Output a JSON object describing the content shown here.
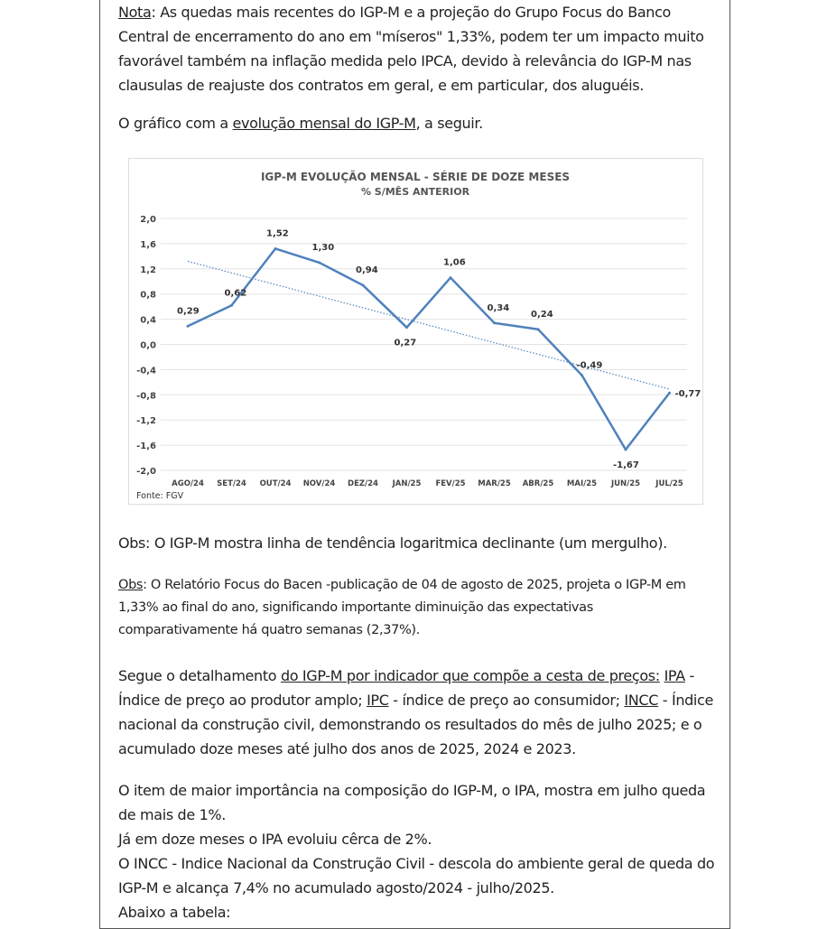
{
  "paragraphs": [
    {
      "id": "nota",
      "lines": [
        [
          {
            "t": "Nota",
            "u": true
          },
          {
            "t": ": As quedas mais recentes do IGP-M e a projeção do Grupo Focus do Banco"
          }
        ],
        [
          {
            "t": "Central de encerramento do ano em \"míseros\" 1,33%, podem ter um impacto muito"
          }
        ],
        [
          {
            "t": "favorável também na inflação medida pelo IPCA, devido à relevância do IGP-M nas"
          }
        ],
        [
          {
            "t": "clausulas de reajuste dos contratos em geral, e em particular, dos aluguéis."
          }
        ]
      ]
    },
    {
      "id": "grafico-intro",
      "lines": [
        [
          {
            "t": "O gráfico com a "
          },
          {
            "t": "evolução mensal do IGP-M",
            "u": true
          },
          {
            "t": ", a seguir."
          }
        ]
      ]
    },
    {
      "id": "obs1",
      "lines": [
        [
          {
            "t": "Obs: O IGP-M mostra linha de tendência logaritmica declinante (um mergulho)."
          }
        ]
      ]
    },
    {
      "id": "obs2",
      "small": true,
      "lines": [
        [
          {
            "t": "Obs",
            "u": true
          },
          {
            "t": ": O Relatório Focus do Bacen -publicação de 04 de agosto de 2025, projeta o IGP-M em"
          }
        ],
        [
          {
            "t": "1,33% ao final do ano, significando importante diminuição das expectativas"
          }
        ],
        [
          {
            "t": "comparativamente há quatro semanas (2,37%)."
          }
        ]
      ]
    },
    {
      "id": "segue",
      "lines": [
        [
          {
            "t": "Segue o detalhamento "
          },
          {
            "t": "do IGP-M por indicador que compõe a cesta de preços:",
            "u": true
          },
          {
            "t": " "
          },
          {
            "t": "IPA",
            "u": true
          },
          {
            "t": " -"
          }
        ],
        [
          {
            "t": "Índice de preço ao produtor amplo; "
          },
          {
            "t": "IPC",
            "u": true
          },
          {
            "t": " - índice de preço ao consumidor; "
          },
          {
            "t": "INCC",
            "u": true
          },
          {
            "t": " - Índice"
          }
        ],
        [
          {
            "t": "nacional da construção civil, demonstrando os resultados do mês de julho 2025; e o"
          }
        ],
        [
          {
            "t": "acumulado doze meses até julho dos anos de 2025, 2024 e 2023."
          }
        ]
      ]
    },
    {
      "id": "item",
      "lines": [
        [
          {
            "t": "O item de maior importância na composição do IGP-M, o IPA, mostra em julho queda"
          }
        ],
        [
          {
            "t": "de mais de 1%."
          }
        ],
        [
          {
            "t": "Já em doze meses o IPA evoluiu cêrca de 2%."
          }
        ],
        [
          {
            "t": "O INCC - Indice Nacional da Construção Civil - descola do ambiente geral de queda do"
          }
        ],
        [
          {
            "t": "IGP-M e alcança 7,4% no acumulado agosto/2024 - julho/2025."
          }
        ],
        [
          {
            "t": "Abaixo a tabela:"
          }
        ]
      ]
    }
  ],
  "chart_data": {
    "type": "line",
    "title": "IGP-M Evolução mensal - série de doze meses",
    "subtitle": "% s/mês anterior",
    "source": "Fonte: FGV",
    "categories": [
      "AGO/24",
      "SET/24",
      "OUT/24",
      "NOV/24",
      "DEZ/24",
      "JAN/25",
      "FEV/25",
      "MAR/25",
      "ABR/25",
      "MAI/25",
      "JUN/25",
      "JUL/25"
    ],
    "values": [
      0.29,
      0.62,
      1.52,
      1.3,
      0.94,
      0.27,
      1.06,
      0.34,
      0.24,
      -0.49,
      -1.67,
      -0.77
    ],
    "data_labels": [
      "0,29",
      "0,62",
      "1,52",
      "1,30",
      "0,94",
      "0,27",
      "1,06",
      "0,34",
      "0,24",
      "-0,49",
      "-1,67",
      "-0,77"
    ],
    "yticks": [
      "2,0",
      "1,6",
      "1,2",
      "0,8",
      "0,4",
      "0,0",
      "-0,4",
      "-0,8",
      "-1,2",
      "-1,6",
      "-2,0"
    ],
    "ylim": [
      -2.0,
      2.0
    ],
    "trendline": {
      "style": "dotted",
      "start": 1.32,
      "end": -0.71
    },
    "grid": true,
    "line_color": "#4f81bd"
  }
}
